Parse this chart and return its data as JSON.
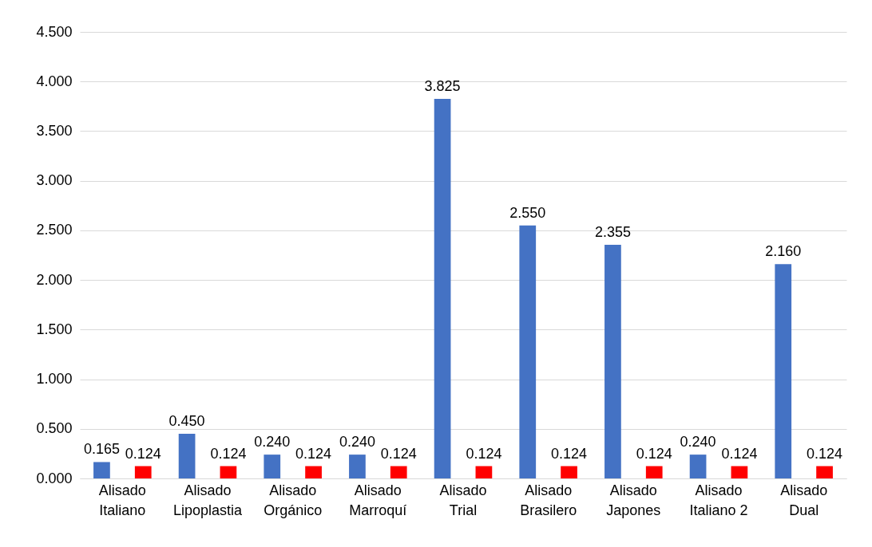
{
  "chart_data": {
    "type": "bar",
    "categories": [
      "Alisado Italiano",
      "Alisado Lipoplastia",
      "Alisado Orgánico",
      "Alisado Marroquí",
      "Alisado Trial",
      "Alisado Brasilero",
      "Alisado Japones",
      "Alisado Italiano 2",
      "Alisado Dual"
    ],
    "series": [
      {
        "color": "#4472c4",
        "values": [
          0.165,
          0.45,
          0.24,
          0.24,
          3.825,
          2.55,
          2.355,
          0.24,
          2.16
        ],
        "value_labels": [
          "0.165",
          "0.450",
          "0.240",
          "0.240",
          "3.825",
          "2.550",
          "2.355",
          "0.240",
          "2.160"
        ]
      },
      {
        "color": "#ff0000",
        "values": [
          0.124,
          0.124,
          0.124,
          0.124,
          0.124,
          0.124,
          0.124,
          0.124,
          0.124
        ],
        "value_labels": [
          "0.124",
          "0.124",
          "0.124",
          "0.124",
          "0.124",
          "0.124",
          "0.124",
          "0.124",
          "0.124"
        ]
      }
    ],
    "ylim": [
      0,
      4.5
    ],
    "yticks": [
      {
        "value": 0,
        "label": "0.000"
      },
      {
        "value": 0.5,
        "label": "0.500"
      },
      {
        "value": 1,
        "label": "1.000"
      },
      {
        "value": 1.5,
        "label": "1.500"
      },
      {
        "value": 2,
        "label": "2.000"
      },
      {
        "value": 2.5,
        "label": "2.500"
      },
      {
        "value": 3,
        "label": "3.000"
      },
      {
        "value": 3.5,
        "label": "3.500"
      },
      {
        "value": 4,
        "label": "4.000"
      },
      {
        "value": 4.5,
        "label": "4.500"
      }
    ],
    "grid": "y",
    "legend": false
  }
}
